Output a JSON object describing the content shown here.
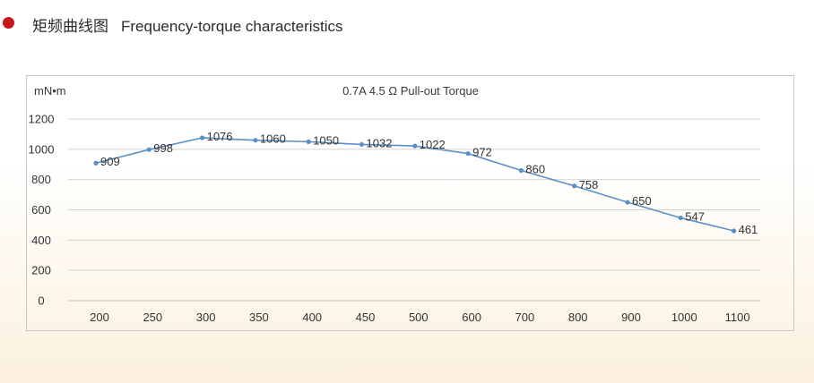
{
  "header": {
    "title_cn": "矩频曲线图",
    "title_en": "Frequency-torque characteristics",
    "bullet_color": "#c8161d"
  },
  "chart_data": {
    "type": "line",
    "title": "0.7A 4.5 Ω Pull-out Torque",
    "ylabel": "mN•m",
    "xlabel": "",
    "categories": [
      "200",
      "250",
      "300",
      "350",
      "400",
      "450",
      "500",
      "600",
      "700",
      "800",
      "900",
      "1000",
      "1100"
    ],
    "series": [
      {
        "values": [
          909,
          998,
          1076,
          1060,
          1050,
          1032,
          1022,
          972,
          860,
          758,
          650,
          547,
          461
        ],
        "color": "#5b8fc8"
      }
    ],
    "ylim": [
      0,
      1200
    ],
    "yticks": [
      0,
      200,
      400,
      600,
      800,
      1000,
      1200
    ],
    "grid": true,
    "data_labels": true,
    "legend": "none"
  }
}
